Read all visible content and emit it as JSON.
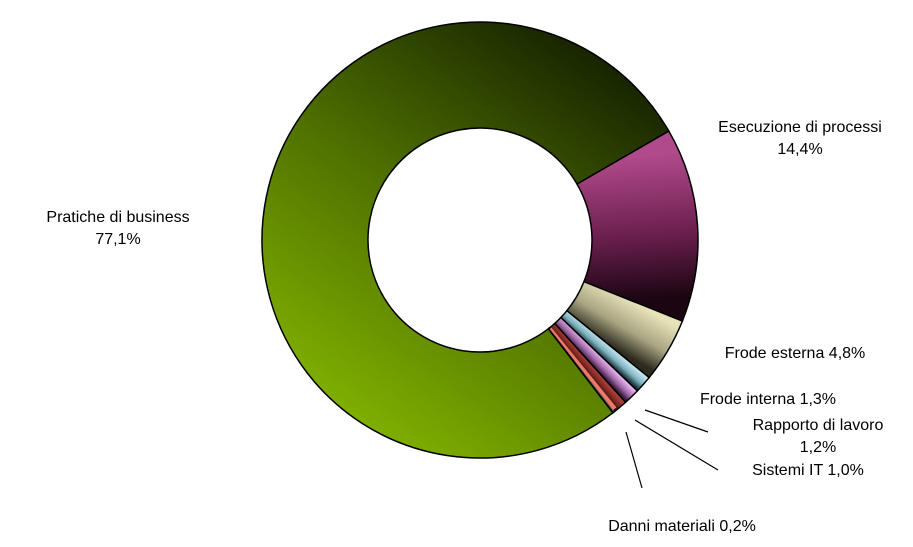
{
  "chart_data": {
    "type": "pie",
    "variant": "donut",
    "legend": "none",
    "slices": [
      {
        "label": "Esecuzione di processi",
        "value_text": "14,4%",
        "value": 14.4,
        "colors": {
          "light": "#b04a8a",
          "mid": "#6a1f4e",
          "dark": "#1a0510"
        }
      },
      {
        "label": "Frode esterna",
        "value_text": "4,8%",
        "value": 4.8,
        "colors": {
          "light": "#e7e2b8",
          "mid": "#a8a482",
          "dark": "#2c2b1e"
        }
      },
      {
        "label": "Frode interna",
        "value_text": "1,3%",
        "value": 1.3,
        "colors": {
          "light": "#c3e6ee",
          "mid": "#7fb2be",
          "dark": "#1c3a42"
        }
      },
      {
        "label": "Rapporto di lavoro",
        "value_text": "1,2%",
        "value": 1.2,
        "colors": {
          "light": "#e8b3ee",
          "mid": "#a06aa8",
          "dark": "#3a1a40"
        }
      },
      {
        "label": "Sistemi IT",
        "value_text": "1,0%",
        "value": 1.0,
        "colors": {
          "light": "#b0413a",
          "mid": "#7a2622",
          "dark": "#2a0806"
        }
      },
      {
        "label": "Danni materiali",
        "value_text": "0,2%",
        "value": 0.2,
        "colors": {
          "light": "#8a8a8a",
          "mid": "#555555",
          "dark": "#222222"
        }
      },
      {
        "label": "Pratiche di business",
        "value_text": "77,1%",
        "value": 77.1,
        "colors": {
          "light": "#8fc400",
          "mid": "#4f7000",
          "dark": "#142000"
        }
      }
    ],
    "extra_slice_color": "#f07a6a"
  }
}
